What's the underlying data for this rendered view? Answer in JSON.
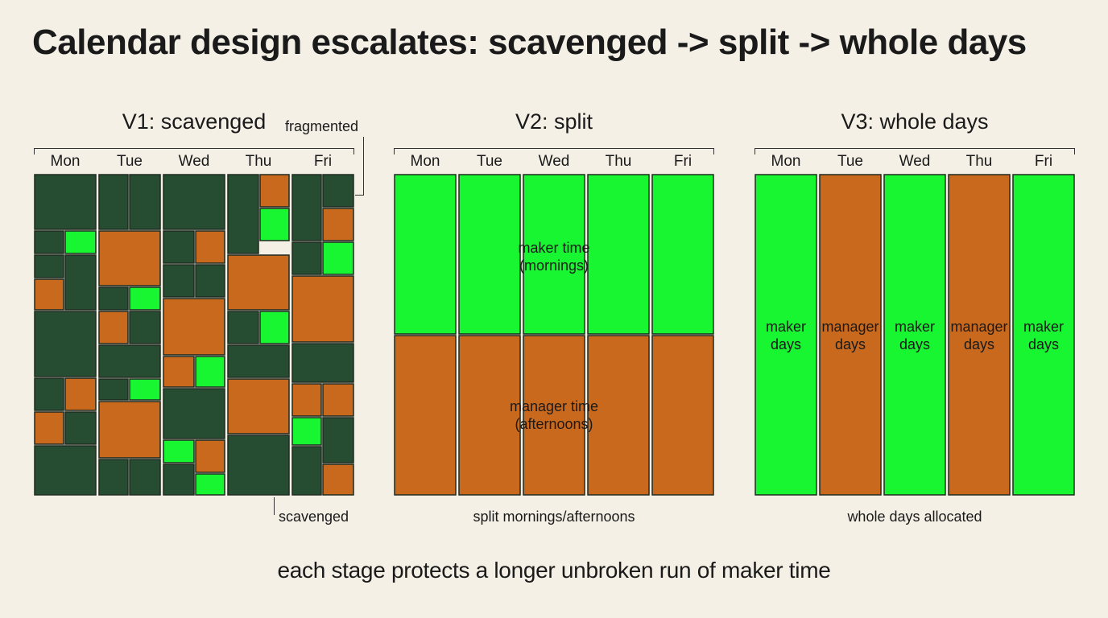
{
  "title": "Calendar design escalates: scavenged -> split -> whole days",
  "colors": {
    "dark": "#264d31",
    "orange": "#c8691e",
    "green": "#18f531",
    "background": "#f4f0e6"
  },
  "days": [
    "Mon",
    "Tue",
    "Wed",
    "Thu",
    "Fri"
  ],
  "panels": [
    {
      "title": "V1: scavenged",
      "caption": "scavenged",
      "annotation": "fragmented"
    },
    {
      "title": "V2: split",
      "caption": "split mornings/afternoons",
      "top_label": "maker time\n(mornings)",
      "bottom_label": "manager time\n(afternoons)"
    },
    {
      "title": "V3: whole days",
      "caption": "whole days allocated",
      "columns": [
        {
          "label": "maker\ndays",
          "type": "maker"
        },
        {
          "label": "manager\ndays",
          "type": "manager"
        },
        {
          "label": "maker\ndays",
          "type": "maker"
        },
        {
          "label": "manager\ndays",
          "type": "manager"
        },
        {
          "label": "maker\ndays",
          "type": "maker"
        }
      ]
    }
  ],
  "footer": "each stage protects a longer unbroken run of maker time"
}
